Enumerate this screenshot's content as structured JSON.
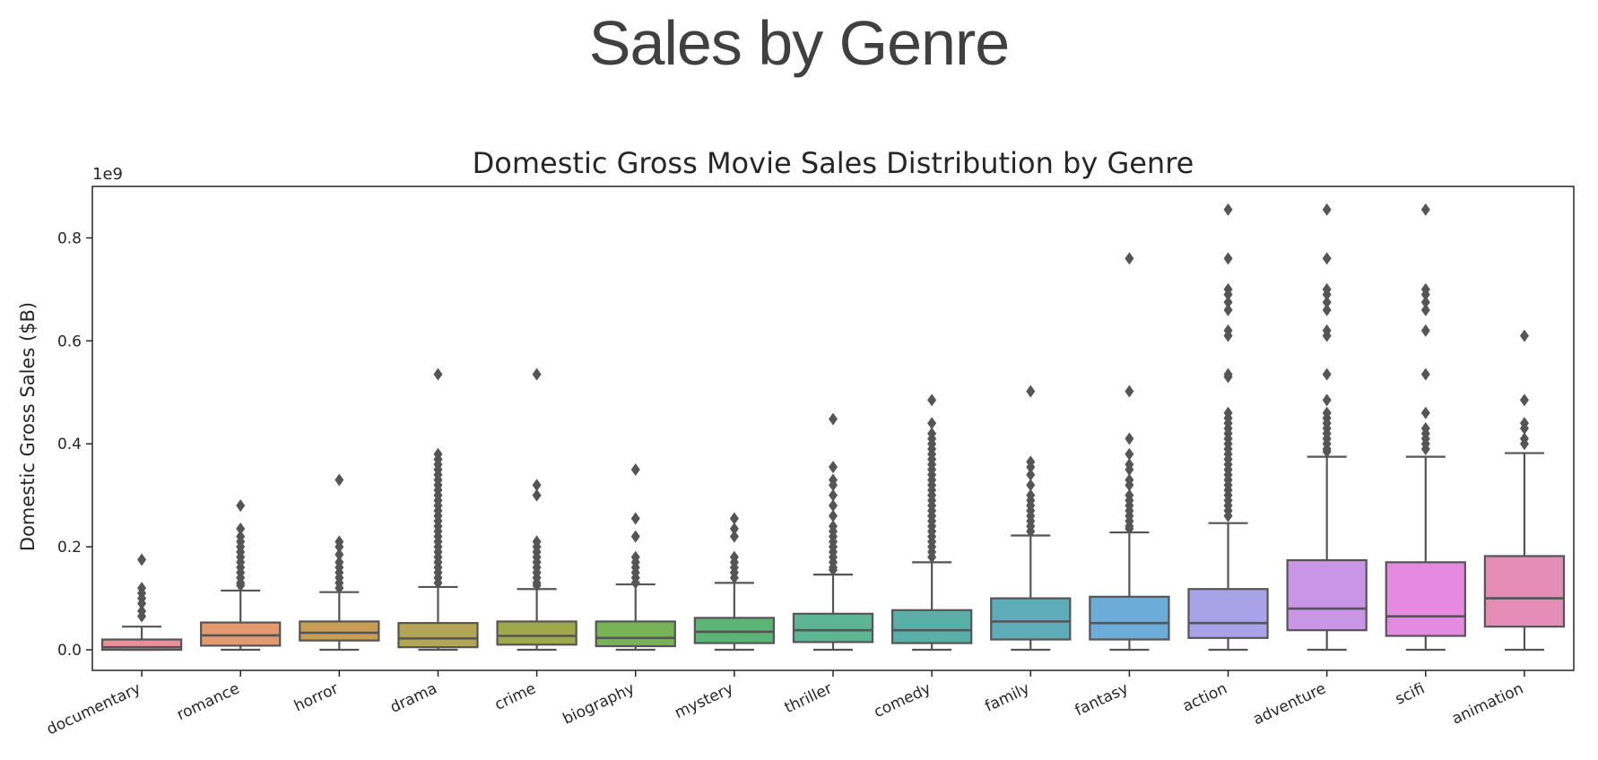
{
  "slide": {
    "title": "Sales by Genre"
  },
  "colors": {
    "box_edge": "#555555",
    "text": "#262626",
    "slide_title": "#404040",
    "genres": [
      "#e88f9a",
      "#e39a6f",
      "#c79e53",
      "#b2a656",
      "#9fa94a",
      "#77b357",
      "#5bb574",
      "#5cb593",
      "#59b0a8",
      "#5cadb9",
      "#6cacd9",
      "#a8a2e6",
      "#c996e6",
      "#e58ae0",
      "#e48db7"
    ]
  },
  "chart_data": {
    "type": "box",
    "title": "Domestic Gross Movie Sales Distribution by Genre",
    "ylabel": "Domestic Gross Sales ($B)",
    "xlabel": "",
    "scale_label": "1e9",
    "ylim": [
      -0.04,
      0.9
    ],
    "yticks": [
      0.0,
      0.2,
      0.4,
      0.6,
      0.8
    ],
    "ytick_labels": [
      "0.0",
      "0.2",
      "0.4",
      "0.6",
      "0.8"
    ],
    "grid": false,
    "legend": "none",
    "categories": [
      "documentary",
      "romance",
      "horror",
      "drama",
      "crime",
      "biography",
      "mystery",
      "thriller",
      "comedy",
      "family",
      "fantasy",
      "action",
      "adventure",
      "scifi",
      "animation"
    ],
    "boxes": [
      {
        "min": 0.0,
        "q1": 0.0,
        "median": 0.005,
        "q3": 0.02,
        "max": 0.045,
        "outliers": [
          0.175,
          0.12,
          0.11,
          0.1,
          0.09,
          0.075,
          0.065
        ]
      },
      {
        "min": 0.0,
        "q1": 0.008,
        "median": 0.028,
        "q3": 0.053,
        "max": 0.115,
        "outliers": [
          0.28,
          0.235,
          0.22,
          0.21,
          0.2,
          0.19,
          0.18,
          0.17,
          0.16,
          0.15,
          0.14,
          0.13,
          0.125
        ]
      },
      {
        "min": 0.0,
        "q1": 0.018,
        "median": 0.033,
        "q3": 0.055,
        "max": 0.112,
        "outliers": [
          0.33,
          0.21,
          0.2,
          0.185,
          0.17,
          0.16,
          0.15,
          0.14,
          0.13,
          0.12
        ]
      },
      {
        "min": 0.0,
        "q1": 0.005,
        "median": 0.022,
        "q3": 0.052,
        "max": 0.122,
        "outliers": [
          0.535,
          0.38,
          0.37,
          0.36,
          0.35,
          0.34,
          0.33,
          0.32,
          0.31,
          0.3,
          0.29,
          0.28,
          0.27,
          0.26,
          0.25,
          0.24,
          0.23,
          0.22,
          0.21,
          0.2,
          0.19,
          0.18,
          0.17,
          0.16,
          0.15,
          0.14,
          0.13
        ]
      },
      {
        "min": 0.0,
        "q1": 0.01,
        "median": 0.027,
        "q3": 0.055,
        "max": 0.118,
        "outliers": [
          0.535,
          0.32,
          0.3,
          0.21,
          0.2,
          0.19,
          0.18,
          0.17,
          0.16,
          0.15,
          0.14,
          0.13,
          0.125
        ]
      },
      {
        "min": 0.0,
        "q1": 0.007,
        "median": 0.023,
        "q3": 0.055,
        "max": 0.127,
        "outliers": [
          0.35,
          0.255,
          0.22,
          0.18,
          0.17,
          0.16,
          0.15,
          0.14,
          0.13
        ]
      },
      {
        "min": 0.0,
        "q1": 0.013,
        "median": 0.035,
        "q3": 0.062,
        "max": 0.13,
        "outliers": [
          0.255,
          0.235,
          0.22,
          0.18,
          0.17,
          0.16,
          0.15,
          0.14
        ]
      },
      {
        "min": 0.0,
        "q1": 0.015,
        "median": 0.038,
        "q3": 0.07,
        "max": 0.146,
        "outliers": [
          0.448,
          0.355,
          0.33,
          0.32,
          0.3,
          0.28,
          0.26,
          0.24,
          0.23,
          0.22,
          0.21,
          0.2,
          0.19,
          0.18,
          0.17,
          0.16,
          0.155
        ]
      },
      {
        "min": 0.0,
        "q1": 0.013,
        "median": 0.038,
        "q3": 0.077,
        "max": 0.17,
        "outliers": [
          0.485,
          0.44,
          0.42,
          0.41,
          0.4,
          0.39,
          0.38,
          0.37,
          0.36,
          0.35,
          0.34,
          0.33,
          0.32,
          0.31,
          0.3,
          0.29,
          0.28,
          0.27,
          0.26,
          0.25,
          0.24,
          0.23,
          0.22,
          0.21,
          0.2,
          0.19,
          0.18
        ]
      },
      {
        "min": 0.0,
        "q1": 0.02,
        "median": 0.055,
        "q3": 0.1,
        "max": 0.222,
        "outliers": [
          0.502,
          0.365,
          0.355,
          0.34,
          0.32,
          0.3,
          0.29,
          0.28,
          0.27,
          0.26,
          0.25,
          0.24,
          0.23
        ]
      },
      {
        "min": 0.0,
        "q1": 0.02,
        "median": 0.052,
        "q3": 0.103,
        "max": 0.228,
        "outliers": [
          0.76,
          0.502,
          0.41,
          0.38,
          0.36,
          0.35,
          0.33,
          0.32,
          0.3,
          0.29,
          0.28,
          0.27,
          0.26,
          0.25,
          0.24,
          0.235
        ]
      },
      {
        "min": 0.0,
        "q1": 0.023,
        "median": 0.052,
        "q3": 0.118,
        "max": 0.246,
        "outliers": [
          0.855,
          0.76,
          0.7,
          0.69,
          0.675,
          0.66,
          0.62,
          0.61,
          0.535,
          0.53,
          0.46,
          0.45,
          0.44,
          0.43,
          0.42,
          0.41,
          0.4,
          0.39,
          0.38,
          0.37,
          0.36,
          0.35,
          0.34,
          0.33,
          0.32,
          0.31,
          0.3,
          0.29,
          0.28,
          0.27,
          0.26
        ]
      },
      {
        "min": 0.0,
        "q1": 0.038,
        "median": 0.08,
        "q3": 0.174,
        "max": 0.375,
        "outliers": [
          0.855,
          0.76,
          0.7,
          0.69,
          0.675,
          0.66,
          0.62,
          0.61,
          0.535,
          0.485,
          0.46,
          0.45,
          0.44,
          0.43,
          0.42,
          0.41,
          0.4,
          0.39,
          0.385
        ]
      },
      {
        "min": 0.0,
        "q1": 0.027,
        "median": 0.065,
        "q3": 0.17,
        "max": 0.375,
        "outliers": [
          0.855,
          0.7,
          0.69,
          0.675,
          0.66,
          0.62,
          0.535,
          0.46,
          0.43,
          0.42,
          0.41,
          0.4,
          0.39
        ]
      },
      {
        "min": 0.0,
        "q1": 0.045,
        "median": 0.1,
        "q3": 0.182,
        "max": 0.382,
        "outliers": [
          0.61,
          0.485,
          0.44,
          0.43,
          0.41,
          0.4
        ]
      }
    ]
  }
}
